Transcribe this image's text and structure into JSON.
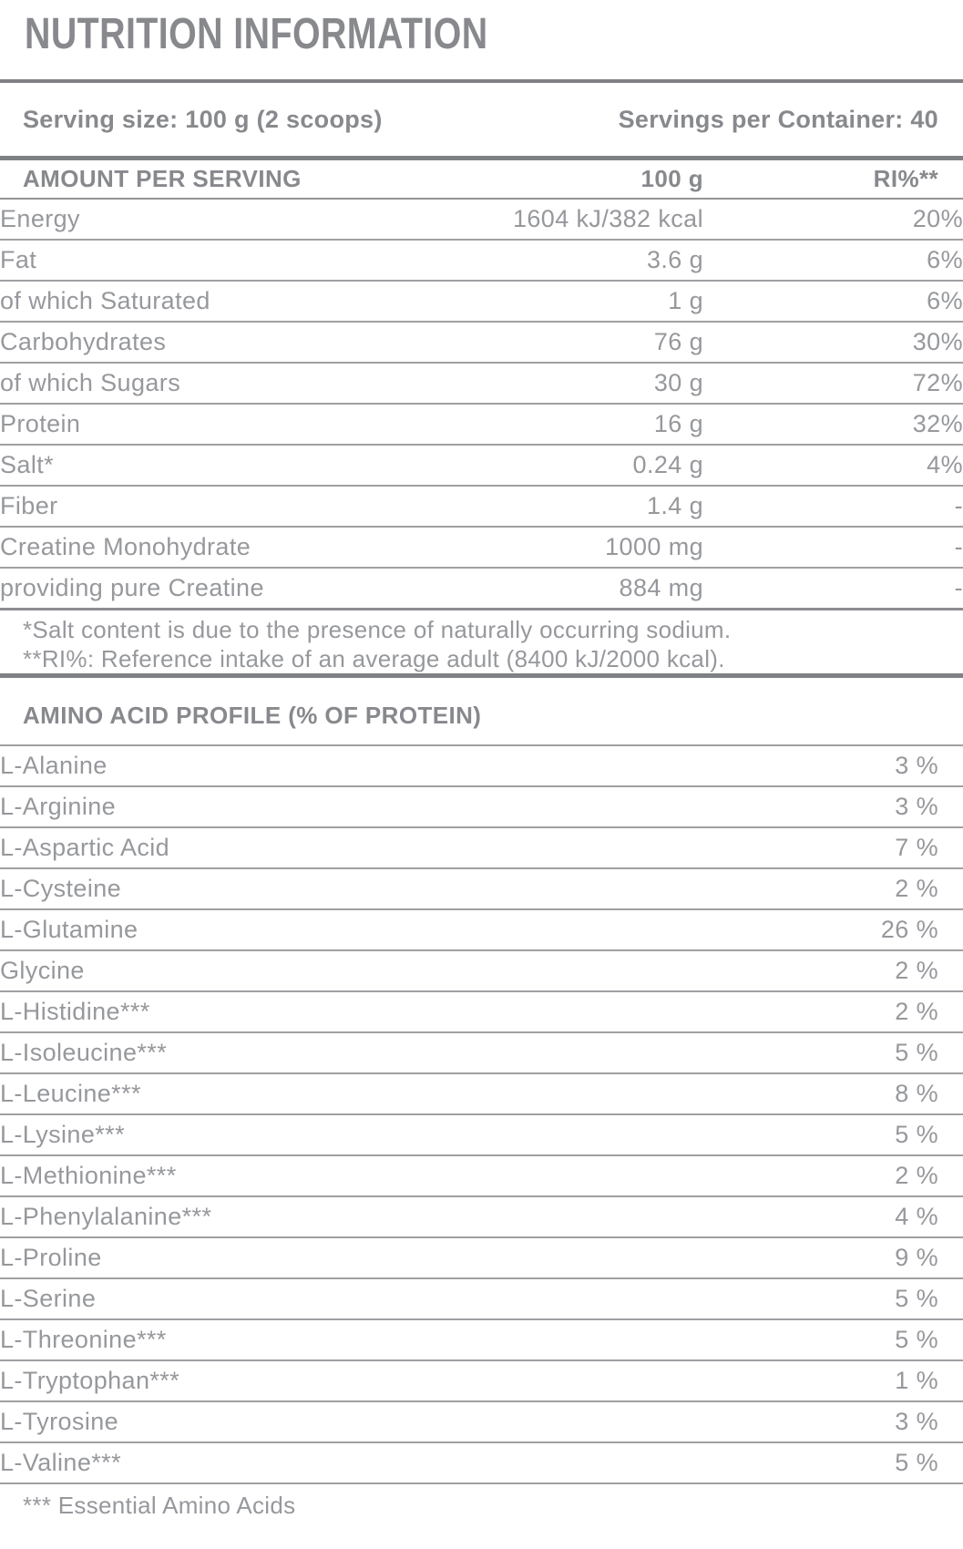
{
  "title": "NUTRITION INFORMATION",
  "serving": {
    "size_label": "Serving size: 100 g (2 scoops)",
    "per_container_label": "Servings per Container: 40"
  },
  "nutrition_table": {
    "headers": {
      "amount_per_serving": "AMOUNT PER SERVING",
      "per_100g": "100 g",
      "ri": "RI%**"
    },
    "rows": [
      {
        "label": "Energy",
        "amount": "1604 kJ/382 kcal",
        "ri": "20%"
      },
      {
        "label": "Fat",
        "amount": "3.6 g",
        "ri": "6%"
      },
      {
        "label": "of which Saturated",
        "amount": "1 g",
        "ri": "6%"
      },
      {
        "label": "Carbohydrates",
        "amount": "76 g",
        "ri": "30%"
      },
      {
        "label": "of which Sugars",
        "amount": "30 g",
        "ri": "72%"
      },
      {
        "label": "Protein",
        "amount": "16 g",
        "ri": "32%"
      },
      {
        "label": "Salt*",
        "amount": "0.24 g",
        "ri": "4%"
      },
      {
        "label": "Fiber",
        "amount": "1.4 g",
        "ri": "-"
      },
      {
        "label": "Creatine Monohydrate",
        "amount": "1000 mg",
        "ri": "-"
      },
      {
        "label": "providing pure Creatine",
        "amount": "884 mg",
        "ri": "-"
      }
    ],
    "footnotes": [
      "*Salt content is due to the presence of naturally occurring sodium.",
      "**RI%: Reference intake of an average adult (8400 kJ/2000 kcal)."
    ]
  },
  "amino_section": {
    "title": "AMINO ACID PROFILE (% OF PROTEIN)",
    "rows": [
      {
        "label": "L-Alanine",
        "value": "3 %"
      },
      {
        "label": "L-Arginine",
        "value": "3 %"
      },
      {
        "label": "L-Aspartic Acid",
        "value": "7 %"
      },
      {
        "label": "L-Cysteine",
        "value": "2 %"
      },
      {
        "label": "L-Glutamine",
        "value": "26 %"
      },
      {
        "label": "Glycine",
        "value": "2 %"
      },
      {
        "label": "L-Histidine***",
        "value": "2 %"
      },
      {
        "label": "L-Isoleucine***",
        "value": "5 %"
      },
      {
        "label": "L-Leucine***",
        "value": "8 %"
      },
      {
        "label": "L-Lysine***",
        "value": "5 %"
      },
      {
        "label": "L-Methionine***",
        "value": "2 %"
      },
      {
        "label": "L-Phenylalanine***",
        "value": "4 %"
      },
      {
        "label": "L-Proline",
        "value": "9 %"
      },
      {
        "label": "L-Serine",
        "value": "5 %"
      },
      {
        "label": "L-Threonine***",
        "value": "5 %"
      },
      {
        "label": "L-Tryptophan***",
        "value": "1 %"
      },
      {
        "label": "L-Tyrosine",
        "value": "3 %"
      },
      {
        "label": "L-Valine***",
        "value": "5 %"
      }
    ],
    "footnote": "*** Essential Amino Acids"
  },
  "colors": {
    "text_gray": "#96989c",
    "heading_gray": "#87898d",
    "rule_gray": "#7f8184"
  }
}
